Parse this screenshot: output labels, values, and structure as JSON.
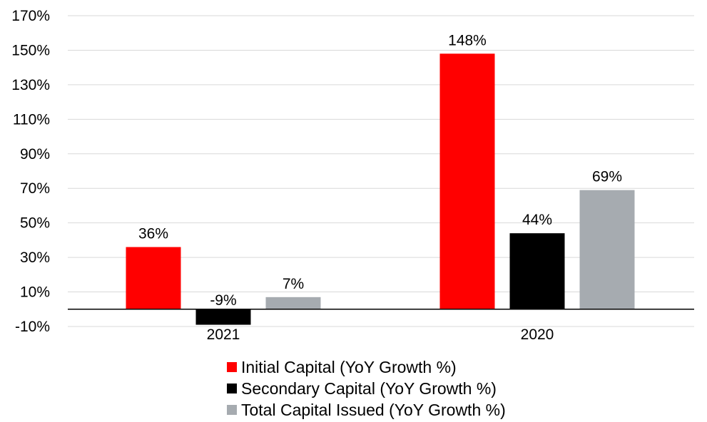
{
  "chart_data": {
    "type": "bar",
    "categories": [
      "2021",
      "2020"
    ],
    "series": [
      {
        "name": "Initial Capital (YoY Growth %)",
        "values": [
          36,
          148
        ],
        "labels": [
          "36%",
          "148%"
        ],
        "color": "#ff0000"
      },
      {
        "name": "Secondary Capital (YoY Growth %)",
        "values": [
          -9,
          44
        ],
        "labels": [
          "-9%",
          "44%"
        ],
        "color": "#000000"
      },
      {
        "name": "Total Capital Issued (YoY Growth %)",
        "values": [
          7,
          69
        ],
        "labels": [
          "7%",
          "69%"
        ],
        "color": "#a6abb0"
      }
    ],
    "ylim": [
      -10,
      170
    ],
    "yticks": [
      -10,
      10,
      30,
      50,
      70,
      90,
      110,
      130,
      150,
      170
    ],
    "ytick_labels": [
      "-10%",
      "10%",
      "30%",
      "50%",
      "70%",
      "90%",
      "110%",
      "130%",
      "150%",
      "170%"
    ],
    "grid": true,
    "legend_position": "bottom"
  }
}
